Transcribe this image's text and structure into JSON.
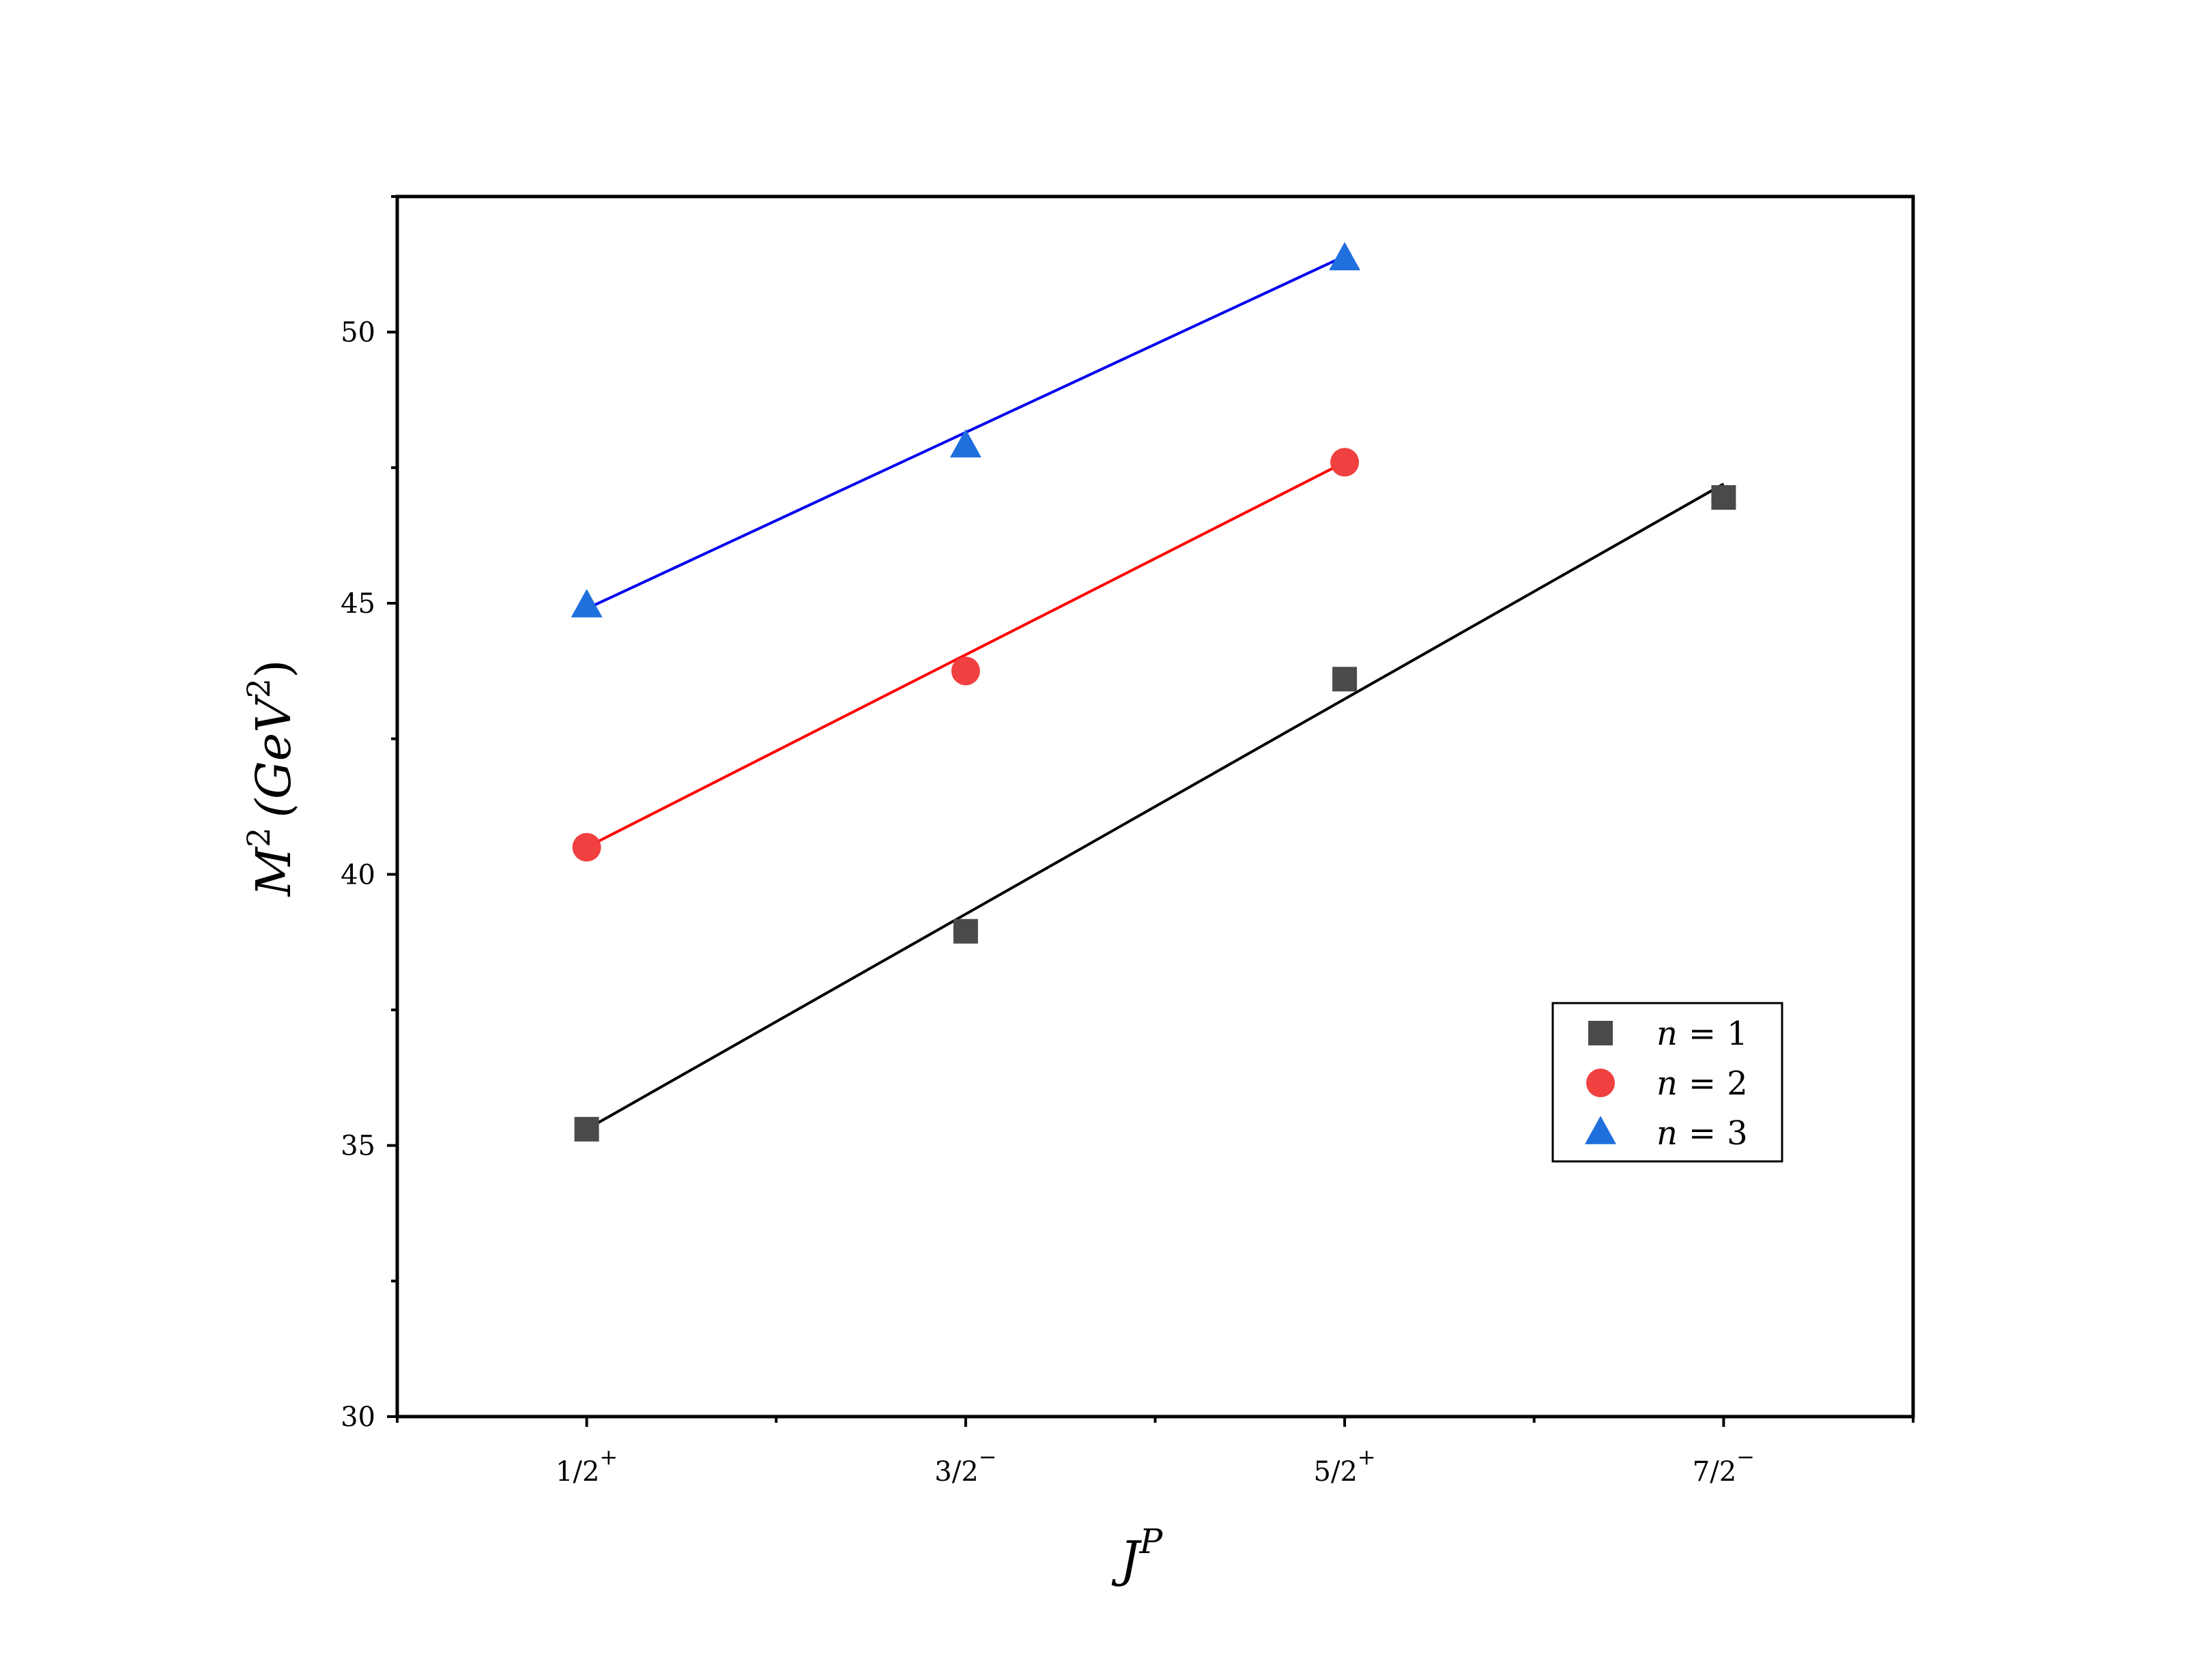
{
  "chart_data": {
    "type": "scatter",
    "x_categories": [
      {
        "base": "1/2",
        "sup": "+"
      },
      {
        "base": "3/2",
        "sup": "−"
      },
      {
        "base": "5/2",
        "sup": "+"
      },
      {
        "base": "7/2",
        "sup": "−"
      }
    ],
    "xlabel": {
      "base": "J",
      "sup": "P"
    },
    "ylabel": {
      "main": "M",
      "sup1": "2",
      "unit": "(GeV",
      "sup2": "2",
      "close": ")"
    },
    "xlim": [
      0.5,
      4.5
    ],
    "ylim": [
      30,
      52.5
    ],
    "y_ticks": [
      30,
      35,
      40,
      45,
      50
    ],
    "y_ticks_text": [
      "30",
      "35",
      "40",
      "45",
      "50"
    ],
    "grid": false,
    "legend_placement": "lower-right",
    "series": [
      {
        "legend_label": {
          "var": "n",
          "eq": "=",
          "val": "1"
        },
        "marker": "square",
        "color": "#4a4a4a",
        "line_color": "#000000",
        "points": [
          [
            1,
            35.3
          ],
          [
            2,
            38.95
          ],
          [
            3,
            43.6
          ],
          [
            4,
            46.95
          ]
        ],
        "fit": [
          [
            1,
            35.3
          ],
          [
            4,
            47.2
          ]
        ]
      },
      {
        "legend_label": {
          "var": "n",
          "eq": "=",
          "val": "2"
        },
        "marker": "circle",
        "color": "#f04040",
        "line_color": "#ff0000",
        "points": [
          [
            1,
            40.5
          ],
          [
            2,
            43.75
          ],
          [
            3,
            47.6
          ]
        ],
        "fit": [
          [
            1,
            40.5
          ],
          [
            3,
            47.6
          ]
        ]
      },
      {
        "legend_label": {
          "var": "n",
          "eq": "=",
          "val": "3"
        },
        "marker": "triangle",
        "color": "#1f6fdd",
        "line_color": "#0000ee",
        "points": [
          [
            1,
            44.95
          ],
          [
            2,
            47.9
          ],
          [
            3,
            51.35
          ]
        ],
        "fit": [
          [
            1,
            44.9
          ],
          [
            3,
            51.4
          ]
        ]
      }
    ]
  }
}
